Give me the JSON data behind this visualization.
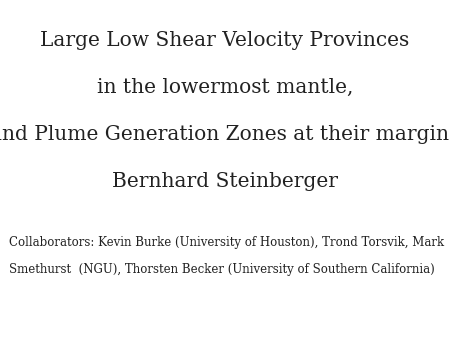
{
  "background_color": "#ffffff",
  "line1": "Large Low Shear Velocity Provinces",
  "line2": "in the lowermost mantle,",
  "line3": "and Plume Generation Zones at their margins",
  "line4": "Bernhard Steinberger",
  "collaborators_line1": "Collaborators: Kevin Burke (University of Houston), Trond Torsvik, Mark",
  "collaborators_line2": "Smethurst  (NGU), Thorsten Becker (University of Southern California)",
  "title_fontsize": 14.5,
  "author_fontsize": 14.5,
  "collab_fontsize": 8.5,
  "text_color": "#222222",
  "font_family": "serif"
}
